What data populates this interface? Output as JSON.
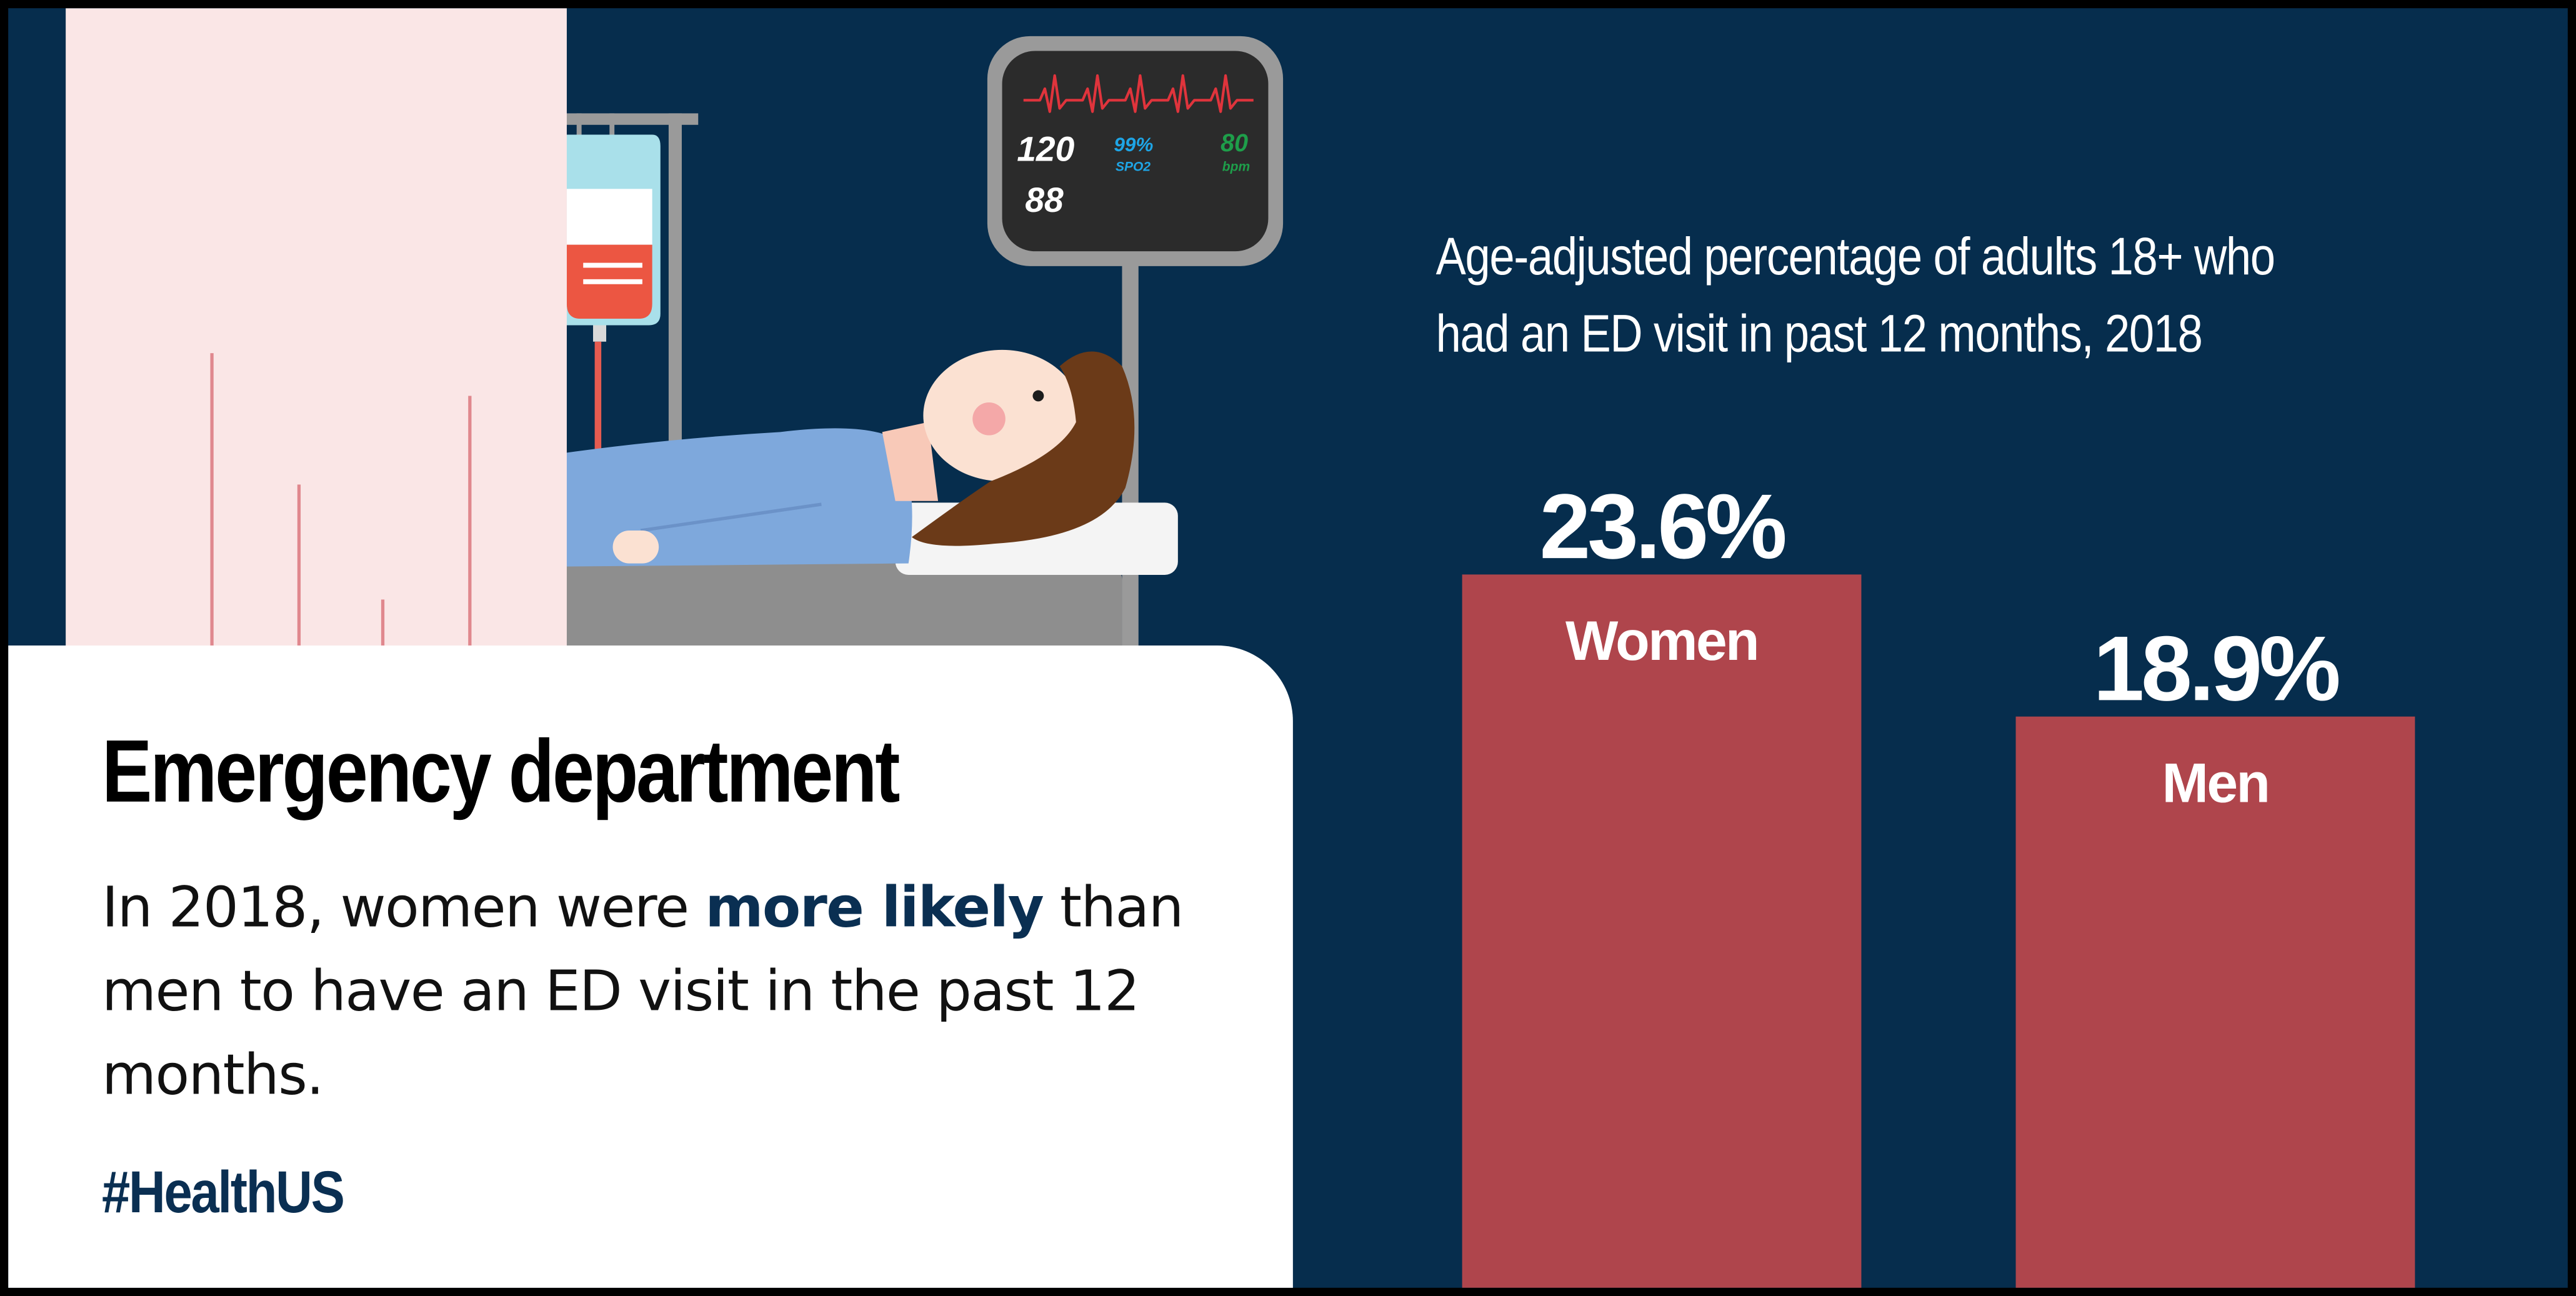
{
  "card": {
    "title": "Emergency department",
    "body_before": "In 2018, women were ",
    "body_emphasis": "more likely",
    "body_after": " than men to have an ED visit in the past 12 months.",
    "hashtag": "#HealthUS"
  },
  "monitor": {
    "systolic": "120",
    "diastolic": "88",
    "spo2_value": "99%",
    "spo2_label": "SPO2",
    "heart_rate": "80",
    "heart_rate_unit": "bpm"
  },
  "colors": {
    "background": "#062d4d",
    "bar": "#af454c",
    "card": "#ffffff",
    "emphasis": "#0a2f52",
    "monitor_red": "#e0343c",
    "monitor_blue": "#1ea5e6",
    "monitor_green": "#1e9e4a"
  },
  "chart_data": {
    "type": "bar",
    "title_line1": "Age-adjusted percentage of adults 18+ who",
    "title_line2": "had an ED visit in past 12 months, 2018",
    "categories": [
      "Women",
      "Men"
    ],
    "values": [
      23.6,
      18.9
    ],
    "value_labels": [
      "23.6%",
      "18.9%"
    ],
    "xlabel": "",
    "ylabel": "",
    "ylim": [
      0,
      36
    ],
    "grid": false,
    "legend": "none",
    "labels_inside_bars": true
  }
}
